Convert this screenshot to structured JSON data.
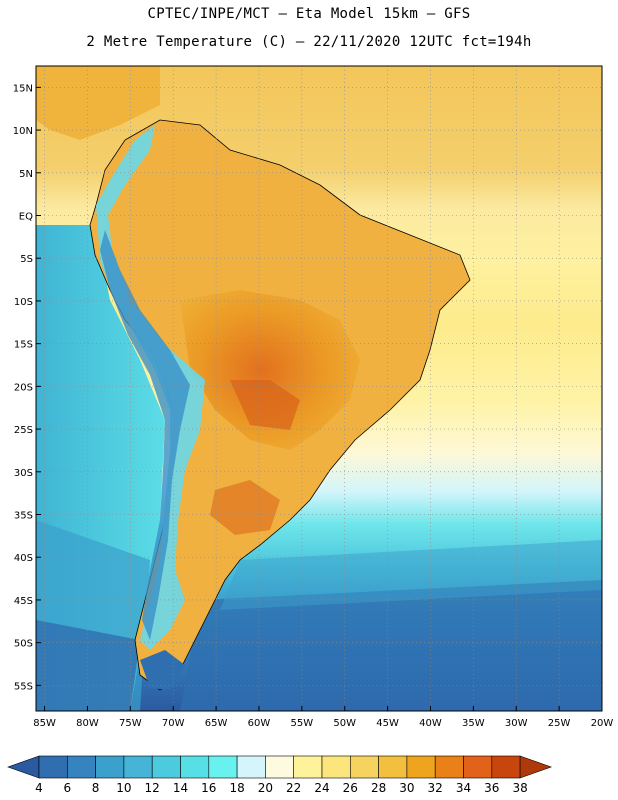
{
  "header": {
    "line1": "CPTEC/INPE/MCT –  Eta Model 15km – GFS",
    "line2": "2 Metre Temperature (C) – 22/11/2020 12UTC fct=194h"
  },
  "map": {
    "lat_labels": [
      "15N",
      "10N",
      "5N",
      "EQ",
      "5S",
      "10S",
      "15S",
      "20S",
      "25S",
      "30S",
      "35S",
      "40S",
      "45S",
      "50S",
      "55S"
    ],
    "lon_labels": [
      "85W",
      "80W",
      "75W",
      "70W",
      "65W",
      "60W",
      "55W",
      "50W",
      "45W",
      "40W",
      "35W",
      "30W",
      "25W",
      "20W"
    ],
    "lat_range": [
      17.5,
      -58
    ],
    "lon_range": [
      -86,
      -20
    ]
  },
  "colorbar": {
    "values": [
      "4",
      "6",
      "8",
      "10",
      "12",
      "14",
      "16",
      "18",
      "20",
      "22",
      "24",
      "26",
      "28",
      "30",
      "32",
      "34",
      "36",
      "38"
    ],
    "colors": [
      "#2c5aa0",
      "#2f6fb0",
      "#3584c0",
      "#3ba0cc",
      "#45b4d6",
      "#4ccbdf",
      "#57dfe6",
      "#69f1f0",
      "#d3f5fb",
      "#fefae0",
      "#fef39a",
      "#fce57c",
      "#f6d25e",
      "#f2bf3e",
      "#eea41c",
      "#e98018",
      "#e2621a",
      "#c8450e",
      "#b0390c"
    ]
  }
}
